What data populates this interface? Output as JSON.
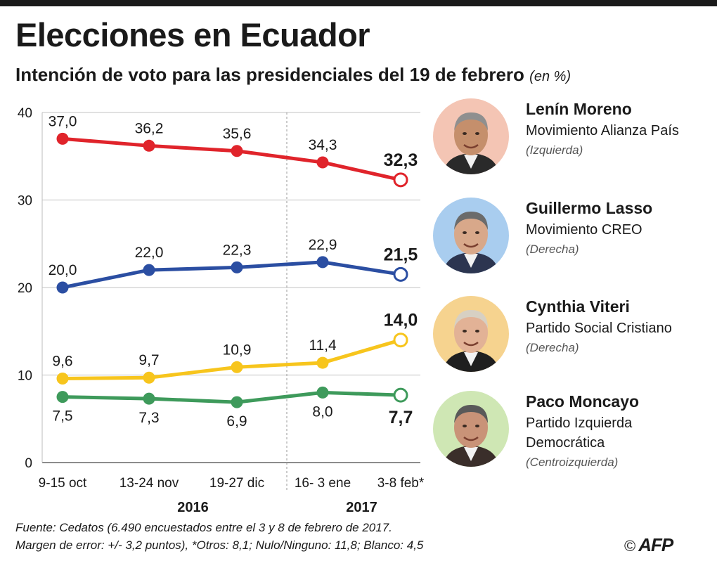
{
  "title": "Elecciones en Ecuador",
  "subtitle": "Intención de voto para las presidenciales del 19 de febrero",
  "subtitle_unit": "(en %)",
  "chart_data": {
    "type": "line",
    "categories": [
      "9-15 oct",
      "13-24 nov",
      "19-27 dic",
      "16- 3 ene",
      "3-8 feb*"
    ],
    "years": [
      {
        "label": "2016",
        "under_index": 1.5
      },
      {
        "label": "2017",
        "under_index": 3.5
      }
    ],
    "ylim": [
      0,
      40
    ],
    "yticks": [
      0,
      10,
      20,
      30,
      40
    ],
    "grid": true,
    "series": [
      {
        "name": "Lenín Moreno",
        "color": "#e0242b",
        "values": [
          37.0,
          36.2,
          35.6,
          34.3,
          32.3
        ],
        "labels": [
          "37,0",
          "36,2",
          "35,6",
          "34,3",
          "32,3"
        ],
        "label_position": "above"
      },
      {
        "name": "Guillermo Lasso",
        "color": "#2b4ea2",
        "values": [
          20.0,
          22.0,
          22.3,
          22.9,
          21.5
        ],
        "labels": [
          "20,0",
          "22,0",
          "22,3",
          "22,9",
          "21,5"
        ],
        "label_position": "above"
      },
      {
        "name": "Cynthia Viteri",
        "color": "#f7c51d",
        "values": [
          9.6,
          9.7,
          10.9,
          11.4,
          14.0
        ],
        "labels": [
          "9,6",
          "9,7",
          "10,9",
          "11,4",
          "14,0"
        ],
        "label_position": "above"
      },
      {
        "name": "Paco Moncayo",
        "color": "#3e9a5b",
        "values": [
          7.5,
          7.3,
          6.9,
          8.0,
          7.7
        ],
        "labels": [
          "7,5",
          "7,3",
          "6,9",
          "8,0",
          "7,7"
        ],
        "label_position": "below"
      }
    ]
  },
  "candidates": [
    {
      "name": "Lenín Moreno",
      "party": "Movimiento Alianza País",
      "ideology": "(Izquierda)",
      "bg": "#f4c5b4",
      "skin": "#c58f6c",
      "hair": "#8f8f8f",
      "suit": "#2a2a2a"
    },
    {
      "name": "Guillermo Lasso",
      "party": "Movimiento CREO",
      "ideology": "(Derecha)",
      "bg": "#a9cdef",
      "skin": "#d8a88a",
      "hair": "#6b6b6b",
      "suit": "#2c3550"
    },
    {
      "name": "Cynthia Viteri",
      "party": "Partido Social Cristiano",
      "ideology": "(Derecha)",
      "bg": "#f6d38f",
      "skin": "#e2b296",
      "hair": "#d7d0c3",
      "suit": "#1f1f1f"
    },
    {
      "name": "Paco Moncayo",
      "party": "Partido Izquierda Democrática",
      "ideology": "(Centroizquierda)",
      "bg": "#cfe7b4",
      "skin": "#c99378",
      "hair": "#595959",
      "suit": "#3a2e2a"
    }
  ],
  "footer": {
    "line1": "Fuente: Cedatos (6.490 encuestados entre el 3 y 8 de febrero de 2017.",
    "line2": "Margen de error: +/- 3,2 puntos),   *Otros: 8,1; Nulo/Ninguno: 11,8; Blanco: 4,5"
  },
  "credit": {
    "symbol": "©",
    "agency": "AFP"
  }
}
